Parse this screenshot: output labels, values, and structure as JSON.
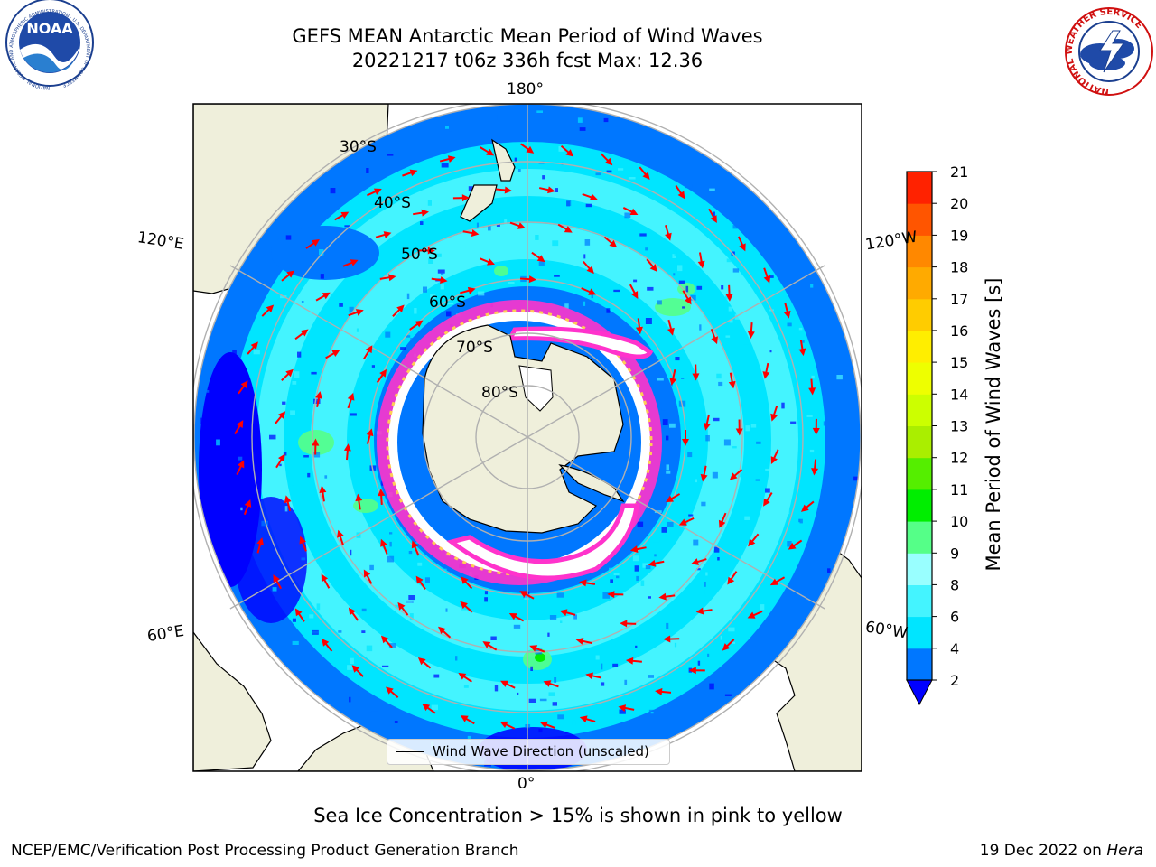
{
  "title": {
    "line1": "GEFS MEAN Antarctic Mean Period of Wind Waves",
    "line2": "20221217 t06z 336h fcst   Max: 12.36"
  },
  "map": {
    "projection": "south-polar-stereographic",
    "longitude_labels": {
      "top": "180°",
      "upper_left": "120°E",
      "upper_right": "120°W",
      "lower_left": "60°E",
      "lower_right": "60°W",
      "bottom": "0°"
    },
    "latitude_labels": [
      "30°S",
      "40°S",
      "50°S",
      "60°S",
      "70°S",
      "80°S"
    ],
    "colors": {
      "land": "#efefdb",
      "coastline": "#000000",
      "gridlines": "#b0b0b0",
      "arrow": "#ff0000",
      "sea_ice": "#ff33cc"
    },
    "legend": "Wind Wave Direction (unscaled)"
  },
  "chart_data": {
    "type": "heatmap",
    "max_value": 12.36,
    "colorbar": {
      "label": "Mean Period of Wind Waves [s]",
      "ticks": [
        2,
        4,
        6,
        8,
        9,
        10,
        11,
        12,
        13,
        14,
        15,
        16,
        17,
        18,
        19,
        20,
        21
      ],
      "colors": [
        "#0000ff",
        "#0077ff",
        "#00e5ff",
        "#44f4ff",
        "#99ffff",
        "#55ff88",
        "#00ee00",
        "#55ee00",
        "#aaee00",
        "#ccff00",
        "#eeff00",
        "#ffee00",
        "#ffcc00",
        "#ffaa00",
        "#ff8800",
        "#ff5500",
        "#ff2200",
        "#ff0000"
      ],
      "extend": "min"
    }
  },
  "caption": "Sea Ice Concentration > 15% is shown in pink to yellow",
  "footer": {
    "left": "NCEP/EMC/Verification Post Processing Product Generation Branch",
    "right_date": "19 Dec 2022 on",
    "right_host": "Hera"
  },
  "logos": {
    "left": "NOAA",
    "left_ring_text": "NATIONAL OCEANIC AND ATMOSPHERIC ADMINISTRATION · U.S. DEPARTMENT OF COMMERCE",
    "right_ring_text": "NATIONAL WEATHER SERVICE"
  }
}
